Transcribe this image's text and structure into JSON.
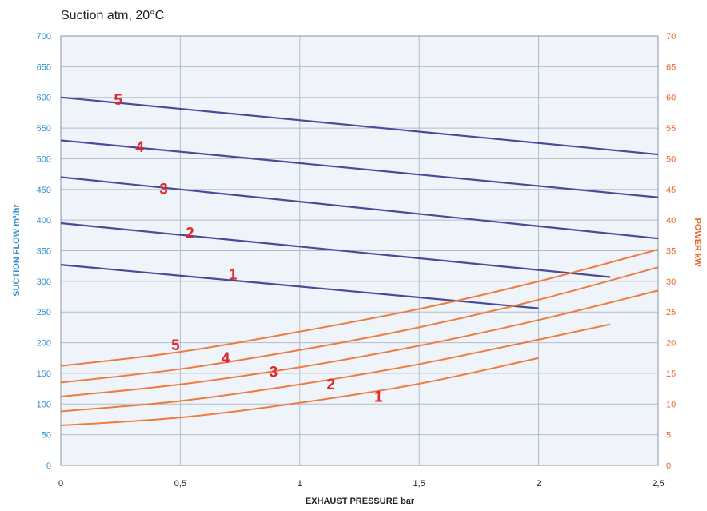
{
  "chart_data": {
    "type": "line",
    "title": "Suction atm, 20°C",
    "xlabel": "EXHAUST PRESSURE bar",
    "ylabel_left": "SUCTION FLOW m³/hr",
    "ylabel_right": "POWER kW",
    "xlim": [
      0,
      2.5
    ],
    "ylim_left": [
      0,
      700
    ],
    "ylim_right": [
      0,
      70
    ],
    "x_ticks": [
      0,
      0.5,
      1,
      1.5,
      2,
      2.5
    ],
    "x_tick_labels": [
      "0",
      "0,5",
      "1",
      "1,5",
      "2",
      "2,5"
    ],
    "y_left_ticks": [
      0,
      50,
      100,
      150,
      200,
      250,
      300,
      350,
      400,
      450,
      500,
      550,
      600,
      650,
      700
    ],
    "y_right_ticks": [
      0,
      5,
      10,
      15,
      20,
      25,
      30,
      35,
      40,
      45,
      50,
      55,
      60,
      65,
      70
    ],
    "grid": true,
    "colors": {
      "flow": "#4a4a9a",
      "power": "#f07a3c",
      "left_axis": "#2e8fcf",
      "right_axis": "#e9662f",
      "labels": "#e3262b",
      "grid": "#b4bcc8",
      "plot_bg": "#eef4fa"
    },
    "flow_series": [
      {
        "name": "1",
        "axis": "left",
        "x": [
          0,
          2
        ],
        "y": [
          327,
          256
        ]
      },
      {
        "name": "2",
        "axis": "left",
        "x": [
          0,
          2.3
        ],
        "y": [
          395,
          307
        ]
      },
      {
        "name": "3",
        "axis": "left",
        "x": [
          0,
          2.5
        ],
        "y": [
          470,
          370
        ]
      },
      {
        "name": "4",
        "axis": "left",
        "x": [
          0,
          2.5
        ],
        "y": [
          530,
          437
        ]
      },
      {
        "name": "5",
        "axis": "left",
        "x": [
          0,
          2.5
        ],
        "y": [
          600,
          507
        ]
      }
    ],
    "power_series": [
      {
        "name": "1",
        "axis": "right",
        "x": [
          0,
          0.5,
          1,
          1.5,
          2
        ],
        "y": [
          6.5,
          7.8,
          10.2,
          13.3,
          17.5
        ]
      },
      {
        "name": "2",
        "axis": "right",
        "x": [
          0,
          0.5,
          1,
          1.5,
          2,
          2.3
        ],
        "y": [
          8.8,
          10.5,
          13.2,
          16.5,
          20.5,
          23
        ]
      },
      {
        "name": "3",
        "axis": "right",
        "x": [
          0,
          0.5,
          1,
          1.5,
          2,
          2.5
        ],
        "y": [
          11.2,
          13.2,
          16,
          19.5,
          23.7,
          28.5
        ]
      },
      {
        "name": "4",
        "axis": "right",
        "x": [
          0,
          0.5,
          1,
          1.5,
          2,
          2.5
        ],
        "y": [
          13.5,
          15.7,
          18.8,
          22.5,
          27,
          32.3
        ]
      },
      {
        "name": "5",
        "axis": "right",
        "x": [
          0,
          0.5,
          1,
          1.5,
          2,
          2.5
        ],
        "y": [
          16.2,
          18.5,
          21.8,
          25.5,
          30,
          35.2
        ]
      }
    ],
    "curve_labels": [
      {
        "text": "5",
        "axis": "left",
        "x": 0.24,
        "y": 597
      },
      {
        "text": "4",
        "axis": "left",
        "x": 0.33,
        "y": 520
      },
      {
        "text": "3",
        "axis": "left",
        "x": 0.43,
        "y": 452
      },
      {
        "text": "2",
        "axis": "left",
        "x": 0.54,
        "y": 380
      },
      {
        "text": "1",
        "axis": "left",
        "x": 0.72,
        "y": 312
      },
      {
        "text": "5",
        "axis": "right",
        "x": 0.48,
        "y": 19.7
      },
      {
        "text": "4",
        "axis": "right",
        "x": 0.69,
        "y": 17.6
      },
      {
        "text": "3",
        "axis": "right",
        "x": 0.89,
        "y": 15.3
      },
      {
        "text": "2",
        "axis": "right",
        "x": 1.13,
        "y": 13.3
      },
      {
        "text": "1",
        "axis": "right",
        "x": 1.33,
        "y": 11.3
      }
    ]
  }
}
